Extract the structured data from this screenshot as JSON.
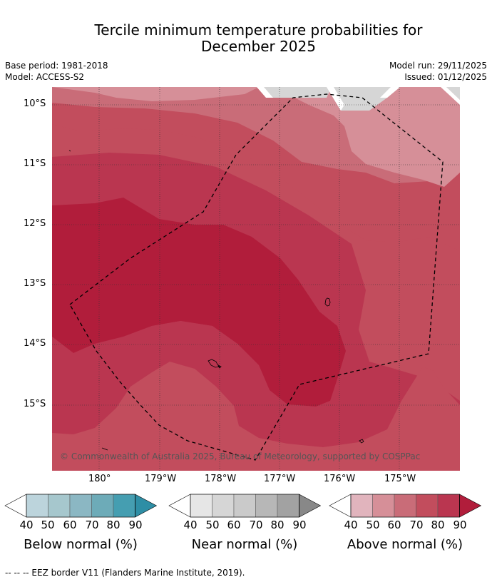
{
  "title": {
    "line1": "Tercile minimum temperature probabilities for",
    "line2": "December 2025"
  },
  "meta": {
    "base_period": "Base period: 1981-2018",
    "model": "Model: ACCESS-S2",
    "model_run": "Model run: 29/11/2025",
    "issued": "Issued: 01/12/2025"
  },
  "map": {
    "lat_ticks": [
      "10°S",
      "11°S",
      "12°S",
      "13°S",
      "14°S",
      "15°S"
    ],
    "lon_ticks": [
      "180°",
      "179°W",
      "178°W",
      "177°W",
      "176°W",
      "175°W"
    ],
    "copyright": "© Commonwealth of Australia 2025, Bureau of Meteorology, supported by COSPPac",
    "colors": {
      "above_40": "#e1b4bd",
      "above_50": "#d68f98",
      "above_60": "#c96c78",
      "above_70": "#c24d5d",
      "above_80": "#ba3650",
      "above_90": "#b11d3b",
      "near_normal": "#d6d6d6"
    }
  },
  "colorbars": {
    "ticks": [
      "40",
      "50",
      "60",
      "70",
      "80",
      "90"
    ],
    "below": {
      "label": "Below normal (%)",
      "colors": [
        "#bcd4dc",
        "#a6c7cd",
        "#8bb7c3",
        "#6dabb8",
        "#459eb1",
        "#2e8ea5"
      ]
    },
    "near": {
      "label": "Near normal (%)",
      "colors": [
        "#e6e6e6",
        "#d6d6d6",
        "#cacaca",
        "#b7b7b7",
        "#a2a2a2",
        "#888888"
      ]
    },
    "above": {
      "label": "Above normal (%)",
      "colors": [
        "#e1b4bd",
        "#d68f98",
        "#c96c78",
        "#c24d5d",
        "#ba3650",
        "#b11d3b"
      ]
    }
  },
  "footer": "--  --  -- EEZ border V11 (Flanders Marine Institute, 2019)."
}
